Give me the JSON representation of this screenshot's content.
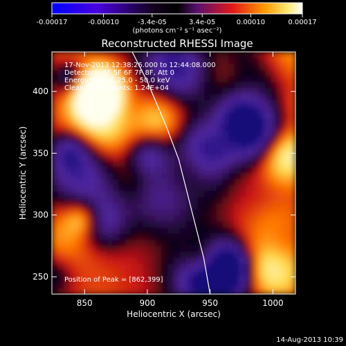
{
  "chart_data": {
    "type": "heatmap",
    "title": "Reconstructed RHESSI Image",
    "xlabel": "Heliocentric X (arcsec)",
    "ylabel": "Heliocentric Y (arcsec)",
    "xlim": [
      824,
      1018
    ],
    "ylim": [
      236,
      432
    ],
    "x_ticks": [
      "850",
      "900",
      "950",
      "1000"
    ],
    "x_tick_values": [
      850,
      900,
      950,
      1000
    ],
    "y_ticks": [
      "250",
      "300",
      "350",
      "400"
    ],
    "y_tick_values": [
      250,
      300,
      350,
      400
    ],
    "colorbar": {
      "range": [
        -0.00017,
        0.00017
      ],
      "ticks": [
        "-0.00017",
        "-0.00010",
        "-3.4e-05",
        "3.4e-05",
        "0.00010",
        "0.00017"
      ],
      "tick_values": [
        -0.00017,
        -0.0001,
        -3.4e-05,
        3.4e-05,
        0.0001,
        0.00017
      ],
      "units": "(photons cm⁻² s⁻¹ asec⁻²)",
      "colors": [
        "#0000ff",
        "#5a00c8",
        "#000000",
        "#6a1ea0",
        "#e01818",
        "#ff8c00",
        "#ffe060",
        "#ffffff"
      ]
    },
    "annotations": [
      "17-Nov-2013 12:38:26.000 to 12:44:08.000",
      "Detectors: 4F 5F 6F 7F 8F, Att 0",
      "Energy Range: 25.0 - 50.0 keV",
      "Clean. Total counts: 1.24E+04"
    ],
    "peak_label": "Position of Peak = [862,399]",
    "peak": [
      862,
      399
    ],
    "limb_curve": [
      [
        888,
        432
      ],
      [
        900,
        408
      ],
      [
        915,
        372
      ],
      [
        925,
        345
      ],
      [
        935,
        305
      ],
      [
        945,
        265
      ],
      [
        950,
        236
      ]
    ],
    "grid": false,
    "legend": "none"
  },
  "footer": {
    "timestamp": "14-Aug-2013 10:39"
  }
}
